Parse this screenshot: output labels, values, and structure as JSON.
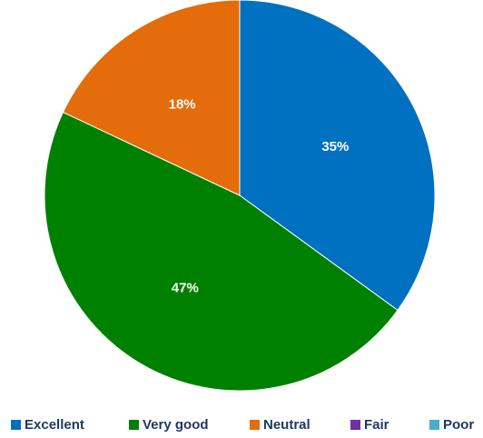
{
  "chart_data": {
    "type": "pie",
    "title": "",
    "legend_position": "bottom",
    "series": [
      {
        "name": "Excellent",
        "value": 35,
        "label": "35%",
        "color": "#0070c0"
      },
      {
        "name": "Very good",
        "value": 47,
        "label": "47%",
        "color": "#008000"
      },
      {
        "name": "Neutral",
        "value": 18,
        "label": "18%",
        "color": "#e46c0a"
      },
      {
        "name": "Fair",
        "value": 0,
        "label": "",
        "color": "#7030a0"
      },
      {
        "name": "Poor",
        "value": 0,
        "label": "",
        "color": "#4bacc6"
      }
    ]
  }
}
